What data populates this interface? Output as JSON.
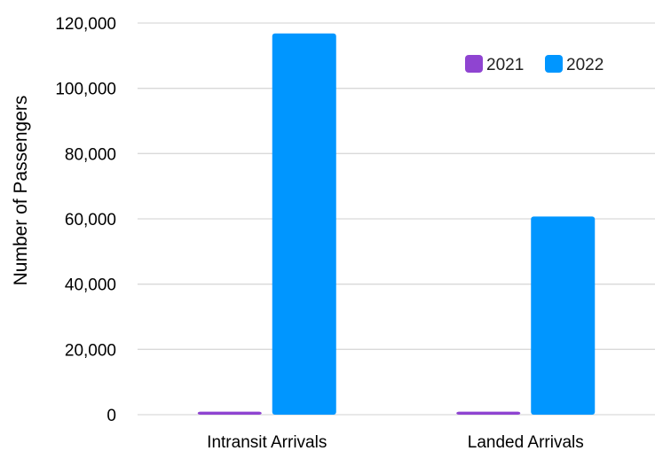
{
  "chart_data": {
    "type": "bar",
    "title": "",
    "xlabel": "",
    "ylabel": "Number of Passengers",
    "categories": [
      "Intransit Arrivals",
      "Landed Arrivals"
    ],
    "series": [
      {
        "name": "2021",
        "values": [
          900,
          900
        ],
        "color": "#8f44d1"
      },
      {
        "name": "2022",
        "values": [
          116800,
          60700
        ],
        "color": "#0096ff"
      }
    ],
    "ylim": [
      0,
      120000
    ],
    "yticks": [
      0,
      20000,
      40000,
      60000,
      80000,
      100000,
      120000
    ],
    "ytick_labels": [
      "0",
      "20,000",
      "40,000",
      "60,000",
      "80,000",
      "100,000",
      "120,000"
    ],
    "grid": true,
    "legend_position": "top-right"
  }
}
